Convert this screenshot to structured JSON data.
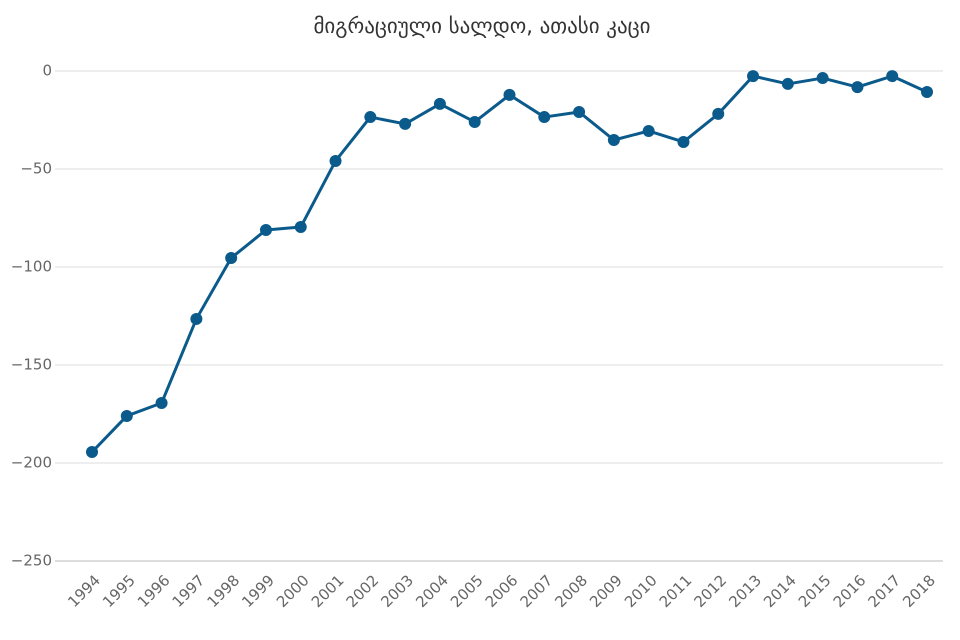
{
  "chart_data": {
    "type": "line",
    "title": "მიგრაციული სალდო, ათასი კაცი",
    "categories": [
      "1994",
      "1995",
      "1996",
      "1997",
      "1998",
      "1999",
      "2000",
      "2001",
      "2002",
      "2003",
      "2004",
      "2005",
      "2006",
      "2007",
      "2008",
      "2009",
      "2010",
      "2011",
      "2012",
      "2013",
      "2014",
      "2015",
      "2016",
      "2017",
      "2018"
    ],
    "series": [
      {
        "color": "#0b5a8c",
        "values": [
          -194.4,
          -176.0,
          -169.4,
          -126.5,
          -95.4,
          -81.1,
          -79.6,
          -45.9,
          -23.5,
          -27.0,
          -16.8,
          -26.0,
          -12.2,
          -23.5,
          -20.9,
          -35.2,
          -30.6,
          -36.2,
          -21.9,
          -2.6,
          -6.6,
          -3.6,
          -8.2,
          -2.6,
          -10.7
        ]
      }
    ],
    "ylim": [
      -250,
      0
    ],
    "yticks": [
      0,
      {
        "value": -50,
        "label": "−50"
      },
      {
        "value": -100,
        "label": "−100"
      },
      {
        "value": -150,
        "label": "−150"
      },
      {
        "value": -200,
        "label": "−200"
      },
      {
        "value": -250,
        "label": "−250"
      }
    ],
    "grid": true
  }
}
